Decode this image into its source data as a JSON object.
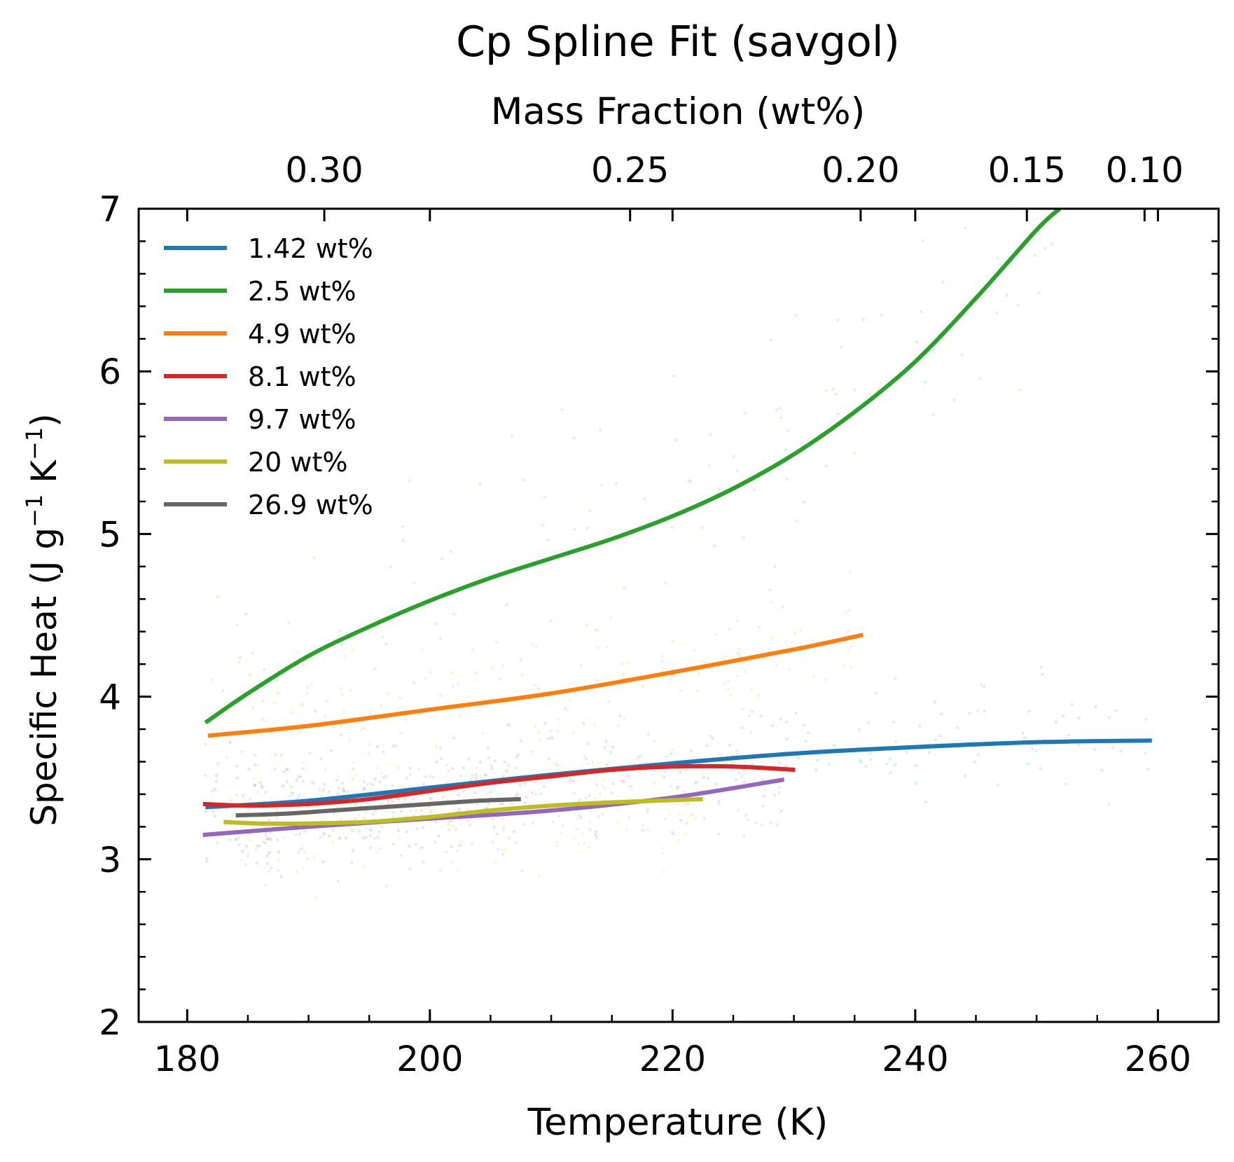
{
  "chart_data": {
    "type": "line",
    "title": "Cp Spline Fit (savgol)",
    "xlabel": "Temperature (K)",
    "ylabel_parts": {
      "main": "Specific Heat (J g",
      "exp1": "−1",
      "mid": " K",
      "exp2": "−1",
      "end": ")"
    },
    "top_xlabel": "Mass Fraction (wt%)",
    "xlim": [
      176,
      265
    ],
    "ylim": [
      2,
      7
    ],
    "x_ticks": [
      180,
      200,
      220,
      240,
      260
    ],
    "y_ticks": [
      2,
      3,
      4,
      5,
      6,
      7
    ],
    "top_ticks": [
      {
        "label": "0.30",
        "at_temperature": 191.3
      },
      {
        "label": "0.25",
        "at_temperature": 216.5
      },
      {
        "label": "0.20",
        "at_temperature": 235.5
      },
      {
        "label": "0.15",
        "at_temperature": 249.2
      },
      {
        "label": "0.10",
        "at_temperature": 258.9
      }
    ],
    "legend_position": "upper-left",
    "grid": false,
    "series": [
      {
        "name": "1.42 wt%",
        "color": "#1f77b4",
        "x": [
          181.5,
          190,
          200,
          210,
          220,
          230,
          240,
          250,
          259.5
        ],
        "y": [
          3.32,
          3.36,
          3.44,
          3.52,
          3.59,
          3.65,
          3.69,
          3.72,
          3.73
        ]
      },
      {
        "name": "2.5 wt%",
        "color": "#2ca02c",
        "x": [
          181.5,
          185,
          190,
          195,
          200,
          205,
          210,
          215,
          220,
          225,
          230,
          235,
          240,
          245,
          250,
          251.9
        ],
        "y": [
          3.84,
          4.02,
          4.25,
          4.43,
          4.59,
          4.73,
          4.85,
          4.97,
          5.11,
          5.28,
          5.49,
          5.75,
          6.06,
          6.45,
          6.87,
          7.0
        ]
      },
      {
        "name": "4.9 wt%",
        "color": "#ff7f0e",
        "x": [
          181.7,
          190,
          200,
          210,
          220,
          230,
          235.7
        ],
        "y": [
          3.76,
          3.82,
          3.92,
          4.02,
          4.15,
          4.29,
          4.38
        ]
      },
      {
        "name": "8.1 wt%",
        "color": "#d62728",
        "x": [
          181.3,
          185,
          190,
          195,
          200,
          205,
          210,
          215,
          220,
          225,
          230.1
        ],
        "y": [
          3.34,
          3.33,
          3.34,
          3.37,
          3.42,
          3.47,
          3.51,
          3.55,
          3.57,
          3.57,
          3.55
        ]
      },
      {
        "name": "9.7 wt%",
        "color": "#9467bd",
        "x": [
          181.3,
          190,
          200,
          210,
          220,
          229.2
        ],
        "y": [
          3.15,
          3.2,
          3.25,
          3.3,
          3.38,
          3.49
        ]
      },
      {
        "name": "20 wt%",
        "color": "#bcbd22",
        "x": [
          183,
          186,
          190,
          195,
          200,
          205,
          210,
          215,
          222.5
        ],
        "y": [
          3.23,
          3.22,
          3.22,
          3.23,
          3.26,
          3.3,
          3.33,
          3.35,
          3.37
        ]
      },
      {
        "name": "26.9 wt%",
        "color": "#666666",
        "x": [
          184,
          188,
          192,
          196,
          200,
          204,
          207.5
        ],
        "y": [
          3.27,
          3.28,
          3.3,
          3.32,
          3.34,
          3.36,
          3.37
        ]
      }
    ]
  }
}
